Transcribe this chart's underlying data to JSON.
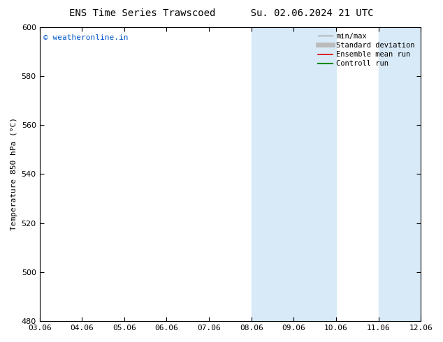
{
  "title_left": "ENS Time Series Trawscoed",
  "title_right": "Su. 02.06.2024 21 UTC",
  "ylabel": "Temperature 850 hPa (°C)",
  "ylim": [
    480,
    600
  ],
  "yticks": [
    480,
    500,
    520,
    540,
    560,
    580,
    600
  ],
  "xtick_labels": [
    "03.06",
    "04.06",
    "05.06",
    "06.06",
    "07.06",
    "08.06",
    "09.06",
    "10.06",
    "11.06",
    "12.06"
  ],
  "copyright_text": "© weatheronline.in",
  "copyright_color": "#0055cc",
  "shaded_regions": [
    {
      "xstart": 5,
      "xend": 7,
      "color": "#d8eaf8"
    },
    {
      "xstart": 8,
      "xend": 9,
      "color": "#d8eaf8"
    }
  ],
  "legend_entries": [
    {
      "label": "min/max",
      "color": "#999999",
      "lw": 1.0
    },
    {
      "label": "Standard deviation",
      "color": "#bbbbbb",
      "lw": 5
    },
    {
      "label": "Ensemble mean run",
      "color": "#dd0000",
      "lw": 1.2
    },
    {
      "label": "Controll run",
      "color": "#008800",
      "lw": 1.5
    }
  ],
  "bg_color": "#ffffff",
  "spine_color": "#000000",
  "font_size_title": 10,
  "font_size_tick": 8,
  "font_size_legend": 7.5,
  "font_size_ylabel": 8,
  "font_size_copyright": 8
}
